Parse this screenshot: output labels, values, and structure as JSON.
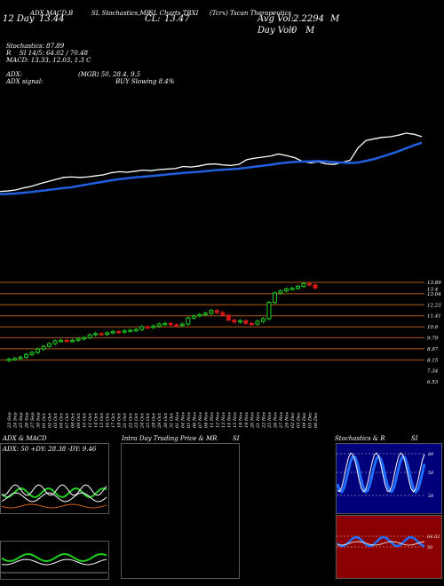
{
  "header": {
    "title_left": "(Tcrx) Tscan Therapeutics",
    "title_mid_label": "CL:",
    "title_mid_value": "13.47",
    "title_right_label": "Avg Vol:",
    "title_right_value": "2.2294",
    "title_right_unit": "M",
    "indicators_tab": "SL Stochastics,MR",
    "date_day": "12 Day",
    "date_value": "13.44",
    "day_vol_label": "Day Vol:",
    "day_vol_value": "0",
    "day_vol_unit": "M",
    "ad_label": "ADX,MACD,B",
    "ma_label": "SL Charts TRXI"
  },
  "stats": {
    "stochastics": "Stochastics: 87.89",
    "si": "SI 14/5: 64.02 / 70.48",
    "r_label": "R",
    "macd": "MACD: 13.33, 12.03, 1.3 C",
    "adx": "ADX:",
    "adx_val": "(MGR) 50, 28.4, 9.5",
    "adx_signal": "ADX signal:",
    "buy": "BUY Slowing 8.4%"
  },
  "price_axis": [
    "13.4",
    "13.89",
    "13.04",
    "12.23",
    "11.41",
    "10.6",
    "9.79",
    "8.97",
    "8.15",
    "7.34",
    "6.53"
  ],
  "dates": [
    "23 Sep",
    "24 Sep",
    "25 Sep",
    "26 Sep",
    "27 Sep",
    "30 Sep",
    "01 Oct",
    "02 Oct",
    "03 Oct",
    "04 Oct",
    "07 Oct",
    "08 Oct",
    "09 Oct",
    "10 Oct",
    "11 Oct",
    "14 Oct",
    "15 Oct",
    "16 Oct",
    "17 Oct",
    "18 Oct",
    "21 Oct",
    "22 Oct",
    "23 Oct",
    "24 Oct",
    "25 Oct",
    "28 Oct",
    "29 Oct",
    "30 Oct",
    "31 Oct",
    "01 Nov",
    "04 Nov",
    "05 Nov",
    "06 Nov",
    "07 Nov",
    "08 Nov",
    "11 Nov",
    "12 Nov",
    "13 Nov",
    "14 Nov",
    "15 Nov",
    "18 Nov",
    "19 Nov",
    "20 Nov",
    "21 Nov",
    "22 Nov",
    "25 Nov",
    "26 Nov",
    "27 Nov",
    "29 Nov",
    "02 Dec",
    "03 Dec",
    "04 Dec",
    "05 Dec",
    "06 Dec"
  ],
  "bottom": {
    "left_title": "ADX & MACD",
    "left_vals": "ADX: 50  +DY: 28.38  -DY: 9.46",
    "mid_title": "Intra Day Trading Price & MR",
    "mid_si": "SI",
    "right_title": "Stochastics & R",
    "right_si": "SI",
    "stoch_ticks": [
      "80",
      "50",
      "20"
    ],
    "rsi_ticks": [
      "64.02",
      "50"
    ]
  },
  "colors": {
    "price_line": "#ffffff",
    "ma_line": "#1f5fe0",
    "up_candle": "#1fcf1f",
    "down_candle": "#d01818",
    "grid": "#b05a1a",
    "rsi_bg": "#8b0000",
    "stoch_bg": "#000080"
  },
  "chart_data": {
    "type": "candlestick",
    "categories": [
      "23 Sep",
      "24 Sep",
      "25 Sep",
      "26 Sep",
      "27 Sep",
      "30 Sep",
      "01 Oct",
      "02 Oct",
      "03 Oct",
      "04 Oct",
      "07 Oct",
      "08 Oct",
      "09 Oct",
      "10 Oct",
      "11 Oct",
      "14 Oct",
      "15 Oct",
      "16 Oct",
      "17 Oct",
      "18 Oct",
      "21 Oct",
      "22 Oct",
      "23 Oct",
      "24 Oct",
      "25 Oct",
      "28 Oct",
      "29 Oct",
      "30 Oct",
      "31 Oct",
      "01 Nov",
      "04 Nov",
      "05 Nov",
      "06 Nov",
      "07 Nov",
      "08 Nov",
      "11 Nov",
      "12 Nov",
      "13 Nov",
      "14 Nov",
      "15 Nov",
      "18 Nov",
      "19 Nov",
      "20 Nov",
      "21 Nov",
      "22 Nov",
      "25 Nov",
      "26 Nov",
      "27 Nov",
      "29 Nov",
      "02 Dec",
      "03 Dec",
      "04 Dec",
      "05 Dec",
      "06 Dec"
    ],
    "close": [
      8.2,
      8.25,
      8.35,
      8.55,
      8.7,
      8.95,
      9.15,
      9.35,
      9.55,
      9.6,
      9.55,
      9.6,
      9.7,
      9.8,
      10.0,
      10.1,
      10.05,
      10.15,
      10.25,
      10.2,
      10.3,
      10.35,
      10.4,
      10.6,
      10.55,
      10.65,
      10.8,
      10.85,
      10.75,
      10.7,
      10.8,
      11.25,
      11.4,
      11.5,
      11.6,
      11.8,
      11.65,
      11.45,
      11.1,
      10.95,
      11.05,
      10.85,
      10.8,
      11.0,
      11.2,
      12.4,
      13.1,
      13.25,
      13.4,
      13.45,
      13.6,
      13.8,
      13.7,
      13.47
    ],
    "ylim": [
      6.53,
      13.89
    ],
    "xlim": [
      "23 Sep",
      "06 Dec"
    ]
  }
}
